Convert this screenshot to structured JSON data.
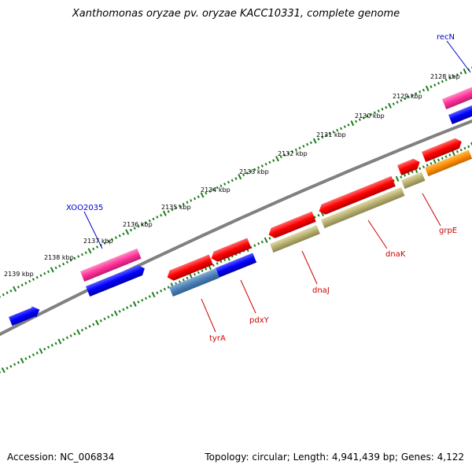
{
  "title": "Xanthomonas oryzae pv. oryzae KACC10331, complete genome",
  "accession": "Accession: NC_006834",
  "summary": "Topology: circular; Length: 4,941,439 bp; Genes: 4,122",
  "kbp_labels": [
    "2128 kbp",
    "2129 kbp",
    "2130 kbp",
    "2131 kbp",
    "2132 kbp",
    "2133 kbp",
    "2134 kbp",
    "2135 kbp",
    "2136 kbp",
    "2137 kbp",
    "2138 kbp",
    "2139 kbp"
  ],
  "genes": {
    "recN": "recN",
    "XOO2035": "XOO2035",
    "grpE": "grpE",
    "dnaK": "dnaK",
    "dnaJ": "dnaJ",
    "pdxY": "pdxY",
    "tyrA": "tyrA"
  },
  "colors": {
    "backbone": "#808080",
    "tick": "#1a7f1a",
    "red": "#ff0000",
    "blue": "#0000ff",
    "pink": "#ff3399",
    "khaki": "#b8b070",
    "orange": "#ff8c00",
    "steel": "#4a7fb5",
    "label_blue": "#0000cc",
    "label_red": "#cc0000"
  }
}
